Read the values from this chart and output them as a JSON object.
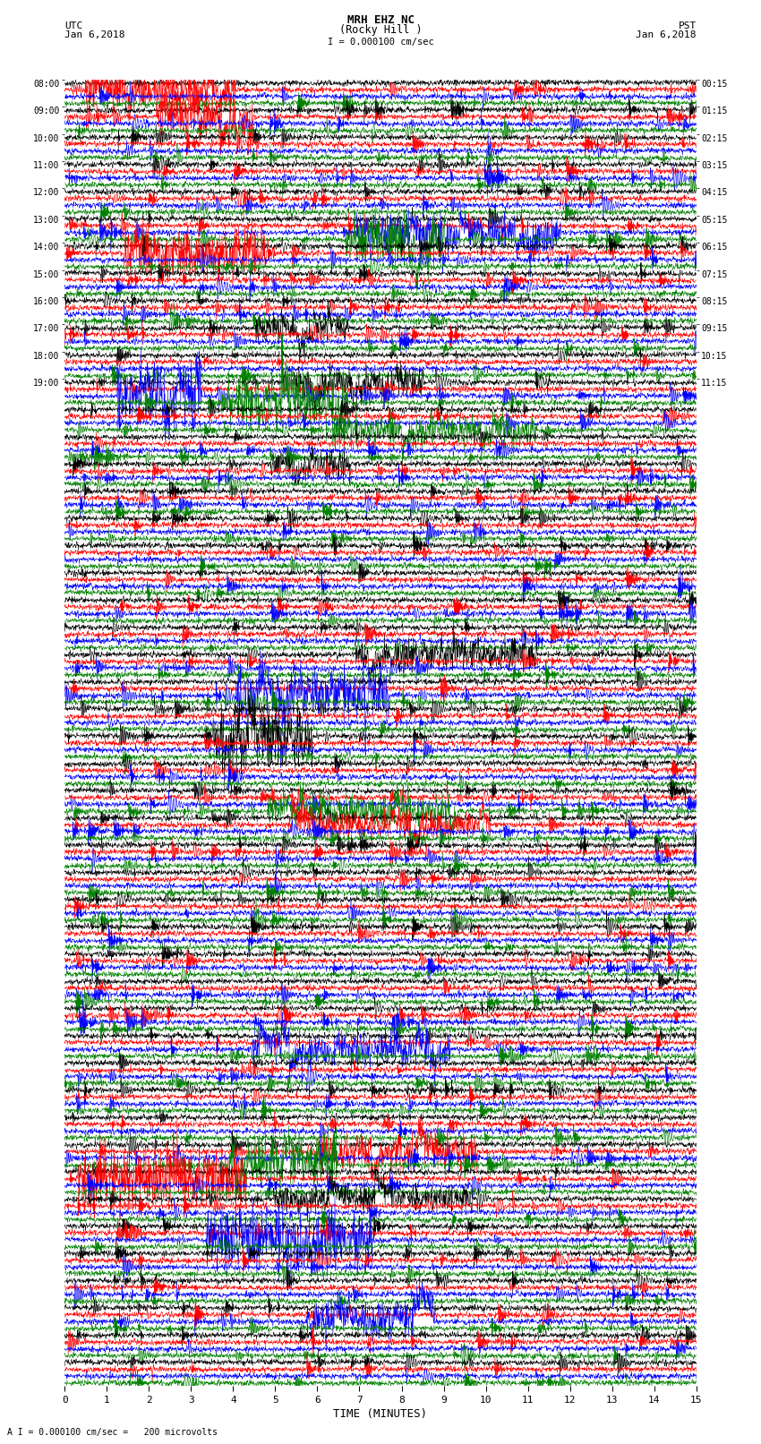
{
  "title_line1": "MRH EHZ NC",
  "title_line2": "(Rocky Hill )",
  "scale_label": "I = 0.000100 cm/sec",
  "footer_label": "A I = 0.000100 cm/sec =   200 microvolts",
  "utc_label": "UTC",
  "utc_date": "Jan 6,2018",
  "pst_label": "PST",
  "pst_date": "Jan 6,2018",
  "xlabel": "TIME (MINUTES)",
  "xmin": 0,
  "xmax": 15,
  "xticks": [
    0,
    1,
    2,
    3,
    4,
    5,
    6,
    7,
    8,
    9,
    10,
    11,
    12,
    13,
    14,
    15
  ],
  "background_color": "#ffffff",
  "trace_colors": [
    "black",
    "red",
    "blue",
    "green"
  ],
  "n_groups": 48,
  "seed": 42,
  "noise_amp": 0.38,
  "trace_scale": 0.48
}
